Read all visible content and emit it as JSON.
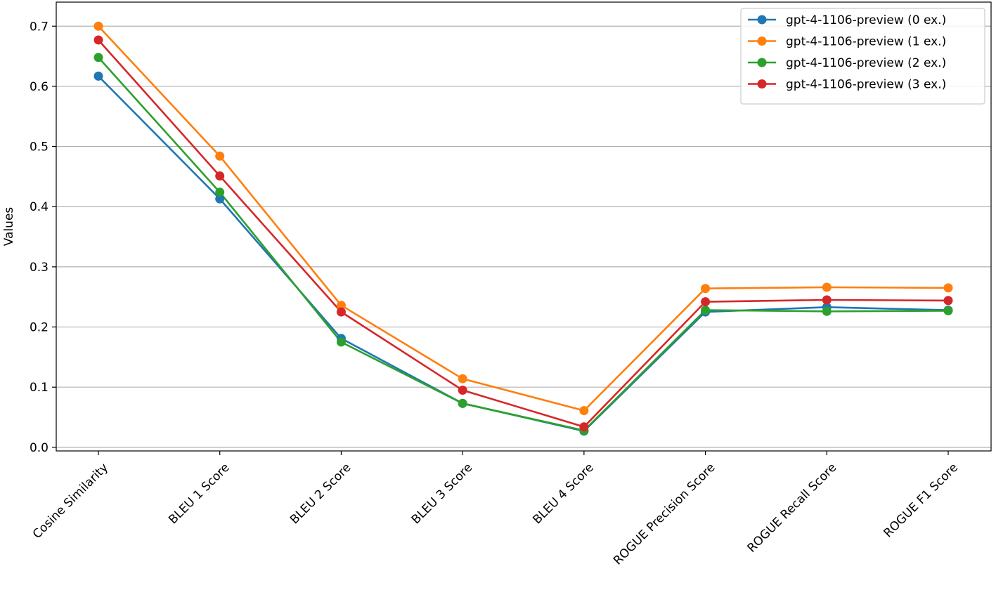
{
  "chart_data": {
    "type": "line",
    "title": "",
    "xlabel": "",
    "ylabel": "Values",
    "ylim": [
      -0.006,
      0.74
    ],
    "yticks": [
      0.0,
      0.1,
      0.2,
      0.3,
      0.4,
      0.5,
      0.6,
      0.7
    ],
    "ytick_labels": [
      "0.0",
      "0.1",
      "0.2",
      "0.3",
      "0.4",
      "0.5",
      "0.6",
      "0.7"
    ],
    "grid": "horizontal",
    "legend_position": "top-right",
    "categories": [
      "Cosine Similarity",
      "BLEU 1 Score",
      "BLEU 2 Score",
      "BLEU 3 Score",
      "BLEU 4 Score",
      "ROGUE Precision Score",
      "ROGUE Recall Score",
      "ROGUE F1 Score"
    ],
    "series": [
      {
        "name": "gpt-4-1106-preview (0 ex.)",
        "color": "#1f77b4",
        "values": [
          0.617,
          0.413,
          0.181,
          0.073,
          0.027,
          0.225,
          0.233,
          0.228
        ]
      },
      {
        "name": "gpt-4-1106-preview (1 ex.)",
        "color": "#ff7f0e",
        "values": [
          0.7,
          0.484,
          0.236,
          0.114,
          0.061,
          0.264,
          0.266,
          0.265
        ]
      },
      {
        "name": "gpt-4-1106-preview (2 ex.)",
        "color": "#2ca02c",
        "values": [
          0.648,
          0.424,
          0.175,
          0.073,
          0.028,
          0.228,
          0.226,
          0.227
        ]
      },
      {
        "name": "gpt-4-1106-preview (3 ex.)",
        "color": "#d62728",
        "values": [
          0.677,
          0.451,
          0.225,
          0.095,
          0.034,
          0.242,
          0.245,
          0.244
        ]
      }
    ]
  }
}
